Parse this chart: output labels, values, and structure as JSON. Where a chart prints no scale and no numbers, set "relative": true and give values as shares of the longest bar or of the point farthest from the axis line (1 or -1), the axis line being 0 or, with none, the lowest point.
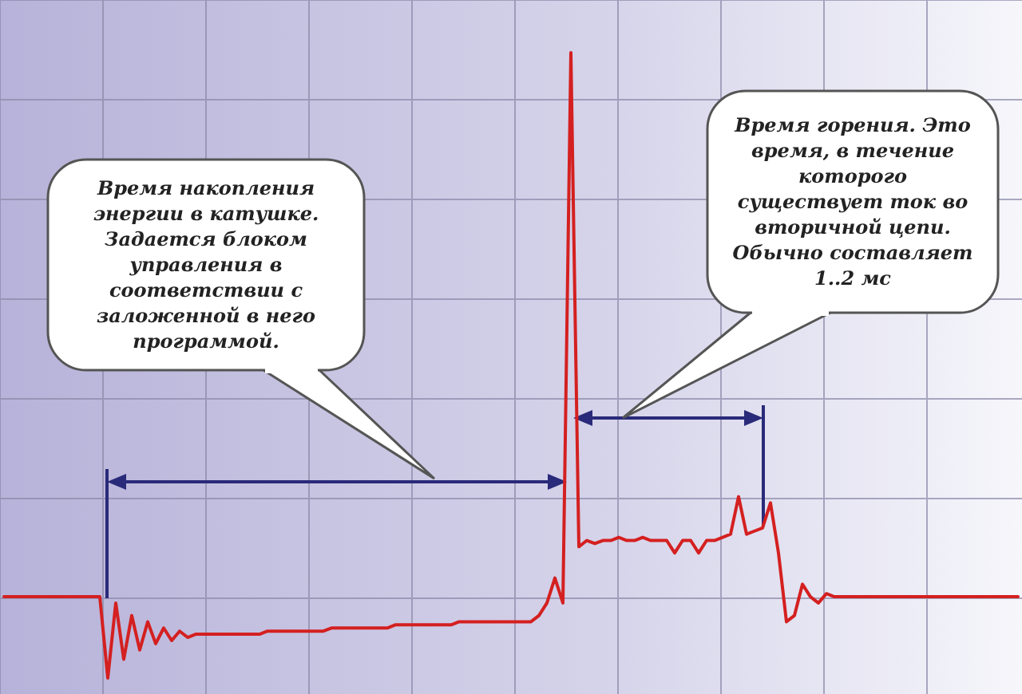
{
  "chart_data": {
    "type": "line",
    "relative": true,
    "grid": true,
    "marker": "none",
    "line_style": "solid",
    "categories": [
      null,
      null,
      null,
      null,
      null,
      null,
      null,
      null,
      null,
      null,
      null,
      null,
      null,
      null,
      null,
      null,
      null,
      null,
      null,
      null,
      null,
      null,
      null,
      null,
      null,
      null,
      null,
      null,
      null,
      null,
      null,
      null,
      null,
      null,
      null,
      null,
      null,
      null,
      null,
      null,
      null,
      null,
      null,
      null,
      null,
      null,
      null,
      null,
      null,
      null,
      null,
      null,
      null,
      null,
      null,
      null,
      null,
      null,
      null,
      null,
      null,
      null,
      null,
      null,
      null,
      null,
      null,
      null,
      null,
      null,
      null,
      null,
      null,
      null,
      null,
      null,
      null,
      null,
      null,
      null,
      null,
      null,
      null,
      null,
      null,
      null,
      null,
      null,
      null,
      null,
      null,
      null,
      null,
      null,
      null,
      null,
      null,
      null,
      null,
      null,
      null,
      null,
      null,
      null,
      null,
      null,
      null,
      null,
      null,
      null,
      null,
      null,
      null,
      null,
      null,
      null,
      null,
      null,
      null,
      null,
      null,
      null,
      null,
      null,
      null,
      null,
      null,
      null
    ],
    "series": [
      {
        "color": "#d42020",
        "values": [
          0.13,
          0.13,
          0.13,
          0.13,
          0.13,
          0.13,
          0.13,
          0.13,
          0.13,
          0.13,
          0.13,
          0.13,
          0.13,
          0.0,
          0.12,
          0.03,
          0.1,
          0.045,
          0.09,
          0.055,
          0.08,
          0.06,
          0.075,
          0.065,
          0.07,
          0.07,
          0.07,
          0.07,
          0.07,
          0.07,
          0.07,
          0.07,
          0.07,
          0.075,
          0.075,
          0.075,
          0.075,
          0.075,
          0.075,
          0.075,
          0.075,
          0.08,
          0.08,
          0.08,
          0.08,
          0.08,
          0.08,
          0.08,
          0.08,
          0.085,
          0.085,
          0.085,
          0.085,
          0.085,
          0.085,
          0.085,
          0.085,
          0.09,
          0.09,
          0.09,
          0.09,
          0.09,
          0.09,
          0.09,
          0.09,
          0.09,
          0.09,
          0.1,
          0.12,
          0.16,
          0.12,
          1.0,
          0.21,
          0.22,
          0.215,
          0.22,
          0.22,
          0.225,
          0.22,
          0.22,
          0.225,
          0.22,
          0.22,
          0.22,
          0.2,
          0.22,
          0.22,
          0.2,
          0.22,
          0.22,
          0.225,
          0.23,
          0.29,
          0.23,
          0.235,
          0.24,
          0.28,
          0.2,
          0.09,
          0.1,
          0.15,
          0.13,
          0.12,
          0.135,
          0.13,
          0.13,
          0.13,
          0.13,
          0.13,
          0.13,
          0.13,
          0.13,
          0.13,
          0.13,
          0.13,
          0.13,
          0.13,
          0.13,
          0.13,
          0.13,
          0.13,
          0.13,
          0.13,
          0.13,
          0.13,
          0.13,
          0.13,
          0.13
        ]
      }
    ],
    "annotations": [
      "Время накопления энергии в катушке. Задается блоком управления в соответствии с заложенной в него программой.",
      "Время горения. Это время, в течение которого существует ток во вторичной цепи. Обычно составляет 1..2 мс"
    ]
  }
}
